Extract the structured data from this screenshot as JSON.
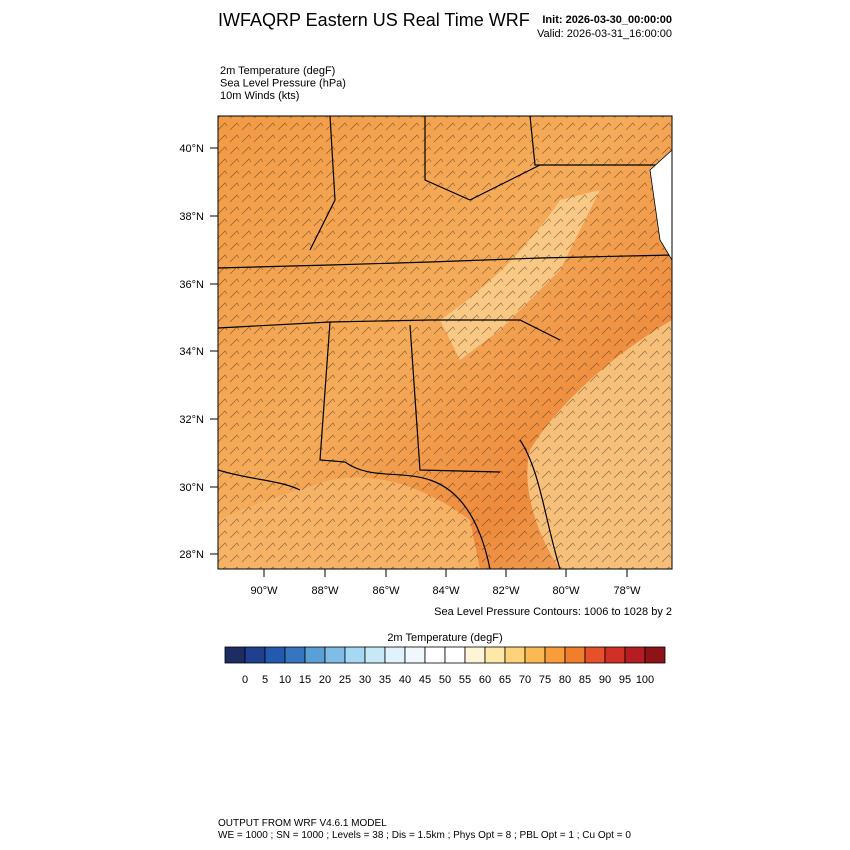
{
  "header": {
    "title": "IWFAQRP Eastern US Real Time WRF",
    "init": "Init: 2026-03-30_00:00:00",
    "valid": "Valid: 2026-03-31_16:00:00"
  },
  "fields": [
    "2m Temperature   (degF)",
    "Sea Level Pressure   (hPa)",
    "10m Winds   (kts)"
  ],
  "map": {
    "lat_labels": [
      "40°N",
      "38°N",
      "36°N",
      "34°N",
      "32°N",
      "30°N",
      "28°N"
    ],
    "lon_labels": [
      "90°W",
      "88°W",
      "86°W",
      "84°W",
      "82°W",
      "80°W",
      "78°W"
    ],
    "contour_note": "Sea Level Pressure Contours: 1006 to 1028 by 2"
  },
  "colorbar": {
    "title": "2m Temperature  (degF)",
    "ticks": [
      0,
      5,
      10,
      15,
      20,
      25,
      30,
      35,
      40,
      45,
      50,
      55,
      60,
      65,
      70,
      75,
      80,
      85,
      90,
      95,
      100
    ],
    "colors": [
      "#1d2c63",
      "#1f3f8f",
      "#2459b0",
      "#3676c0",
      "#5aa0d6",
      "#7fbde6",
      "#a5d8f2",
      "#c6e8f7",
      "#e0f2fa",
      "#f0f8fc",
      "#ffffff",
      "#ffffff",
      "#fff4d6",
      "#ffe7a8",
      "#fdd27a",
      "#fbb953",
      "#f89d3a",
      "#f27d2b",
      "#e6502a",
      "#d22f26",
      "#b51d22",
      "#8e1318"
    ]
  },
  "footer": [
    "OUTPUT FROM WRF V4.6.1 MODEL",
    "WE = 1000 ; SN = 1000 ; Levels = 38 ; Dis = 1.5km ; Phys Opt = 8 ; PBL Opt = 1 ; Cu Opt = 0"
  ]
}
